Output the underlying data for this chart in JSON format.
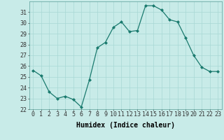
{
  "x": [
    0,
    1,
    2,
    3,
    4,
    5,
    6,
    7,
    8,
    9,
    10,
    11,
    12,
    13,
    14,
    15,
    16,
    17,
    18,
    19,
    20,
    21,
    22,
    23
  ],
  "y": [
    25.6,
    25.1,
    23.6,
    23.0,
    23.2,
    22.9,
    22.2,
    24.7,
    27.7,
    28.2,
    29.6,
    30.1,
    29.2,
    29.3,
    31.6,
    31.6,
    31.2,
    30.3,
    30.1,
    28.6,
    27.0,
    25.9,
    25.5,
    25.5
  ],
  "line_color": "#1a7a6e",
  "marker": "D",
  "marker_size": 2,
  "bg_color": "#c8ebe8",
  "grid_color": "#a8d8d4",
  "xlabel": "Humidex (Indice chaleur)",
  "ylim": [
    22,
    32
  ],
  "xlim": [
    -0.5,
    23.5
  ],
  "yticks": [
    22,
    23,
    24,
    25,
    26,
    27,
    28,
    29,
    30,
    31
  ],
  "xticks": [
    0,
    1,
    2,
    3,
    4,
    5,
    6,
    7,
    8,
    9,
    10,
    11,
    12,
    13,
    14,
    15,
    16,
    17,
    18,
    19,
    20,
    21,
    22,
    23
  ],
  "xlabel_fontsize": 7,
  "tick_fontsize": 6,
  "linewidth": 0.9
}
